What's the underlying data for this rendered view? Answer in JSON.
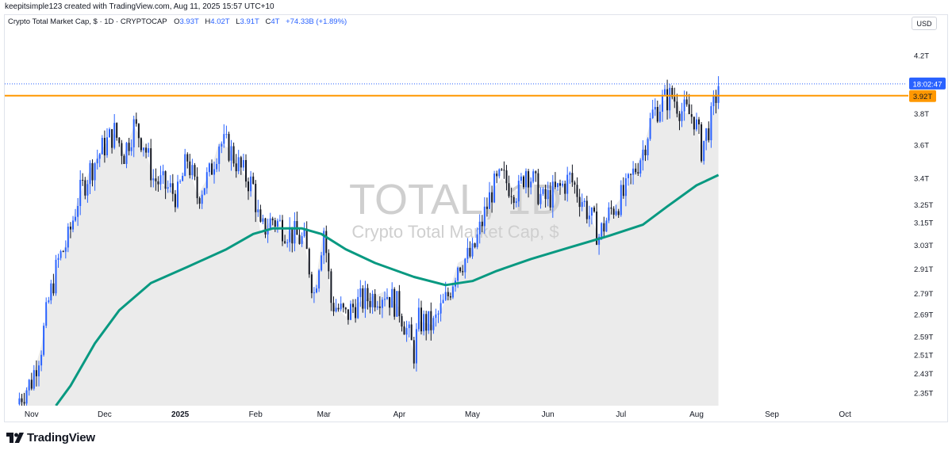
{
  "header": {
    "attribution": "keepitsimple123 created with TradingView.com, Aug 11, 2025 15:57 UTC+10"
  },
  "legend": {
    "title": "Crypto Total Market Cap, $ · 1D · CRYPTOCAP",
    "open_label": "O",
    "open_value": "3.93T",
    "high_label": "H",
    "high_value": "4.02T",
    "low_label": "L",
    "low_value": "3.91T",
    "close_label": "C",
    "close_value": "4T",
    "change_value": "+74.33B (+1.89%)"
  },
  "currency_button": "USD",
  "watermark": {
    "symbol": "TOTAL, 1D",
    "description": "Crypto Total Market Cap, $"
  },
  "footer": {
    "brand": "TradingView"
  },
  "chart_data": {
    "type": "line",
    "title": "Crypto Total Market Cap, $",
    "scale": "log",
    "ylim": [
      2.3,
      4.4
    ],
    "x_axis_labels": [
      {
        "date": "2024-11-01",
        "label": "Nov"
      },
      {
        "date": "2024-12-01",
        "label": "Dec"
      },
      {
        "date": "2025-01-01",
        "label": "2025"
      },
      {
        "date": "2025-02-01",
        "label": "Feb"
      },
      {
        "date": "2025-03-01",
        "label": "Mar"
      },
      {
        "date": "2025-04-01",
        "label": "Apr"
      },
      {
        "date": "2025-05-01",
        "label": "May"
      },
      {
        "date": "2025-06-01",
        "label": "Jun"
      },
      {
        "date": "2025-07-01",
        "label": "Jul"
      },
      {
        "date": "2025-08-01",
        "label": "Aug"
      },
      {
        "date": "2025-09-01",
        "label": "Sep"
      },
      {
        "date": "2025-10-01",
        "label": "Oct"
      }
    ],
    "y_tick_labels": [
      {
        "value": 4.2,
        "label": "4.2T"
      },
      {
        "value": 3.8,
        "label": "3.8T"
      },
      {
        "value": 3.6,
        "label": "3.6T"
      },
      {
        "value": 3.4,
        "label": "3.4T"
      },
      {
        "value": 3.25,
        "label": "3.25T"
      },
      {
        "value": 3.15,
        "label": "3.15T"
      },
      {
        "value": 3.03,
        "label": "3.03T"
      },
      {
        "value": 2.91,
        "label": "2.91T"
      },
      {
        "value": 2.79,
        "label": "2.79T"
      },
      {
        "value": 2.69,
        "label": "2.69T"
      },
      {
        "value": 2.59,
        "label": "2.59T"
      },
      {
        "value": 2.51,
        "label": "2.51T"
      },
      {
        "value": 2.43,
        "label": "2.43T"
      },
      {
        "value": 2.35,
        "label": "2.35T"
      }
    ],
    "price_series": {
      "dates": [
        "2024-10-27",
        "2024-11-01",
        "2024-11-05",
        "2024-11-08",
        "2024-11-12",
        "2024-11-16",
        "2024-11-20",
        "2024-11-25",
        "2024-12-01",
        "2024-12-05",
        "2024-12-09",
        "2024-12-13",
        "2024-12-17",
        "2024-12-21",
        "2024-12-26",
        "2024-12-31",
        "2025-01-04",
        "2025-01-08",
        "2025-01-13",
        "2025-01-17",
        "2025-01-21",
        "2025-01-26",
        "2025-01-31",
        "2025-02-03",
        "2025-02-08",
        "2025-02-15",
        "2025-02-21",
        "2025-02-25",
        "2025-03-01",
        "2025-03-04",
        "2025-03-10",
        "2025-03-14",
        "2025-03-20",
        "2025-03-26",
        "2025-04-01",
        "2025-04-07",
        "2025-04-09",
        "2025-04-15",
        "2025-04-21",
        "2025-04-25",
        "2025-05-01",
        "2025-05-09",
        "2025-05-13",
        "2025-05-20",
        "2025-05-23",
        "2025-05-30",
        "2025-06-05",
        "2025-06-10",
        "2025-06-15",
        "2025-06-22",
        "2025-06-27",
        "2025-07-03",
        "2025-07-10",
        "2025-07-14",
        "2025-07-18",
        "2025-07-22",
        "2025-07-26",
        "2025-07-31",
        "2025-08-03",
        "2025-08-07",
        "2025-08-10"
      ],
      "values": [
        2.33,
        2.4,
        2.55,
        2.75,
        2.95,
        3.06,
        3.28,
        3.45,
        3.6,
        3.68,
        3.55,
        3.72,
        3.62,
        3.4,
        3.35,
        3.3,
        3.52,
        3.3,
        3.42,
        3.62,
        3.58,
        3.45,
        3.35,
        3.1,
        3.17,
        3.1,
        3.05,
        2.79,
        3.12,
        2.75,
        2.68,
        2.74,
        2.77,
        2.8,
        2.72,
        2.52,
        2.66,
        2.64,
        2.78,
        2.94,
        2.98,
        3.33,
        3.4,
        3.32,
        3.46,
        3.27,
        3.33,
        3.4,
        3.28,
        3.08,
        3.22,
        3.32,
        3.57,
        3.8,
        3.88,
        3.92,
        3.82,
        3.78,
        3.58,
        3.76,
        4.0
      ]
    },
    "moving_average": {
      "dates": [
        "2024-11-11",
        "2024-11-17",
        "2024-11-27",
        "2024-12-07",
        "2024-12-20",
        "2025-01-04",
        "2025-01-20",
        "2025-01-31",
        "2025-02-08",
        "2025-02-20",
        "2025-02-28",
        "2025-03-10",
        "2025-03-22",
        "2025-04-07",
        "2025-04-20",
        "2025-05-01",
        "2025-05-11",
        "2025-05-25",
        "2025-06-10",
        "2025-06-26",
        "2025-07-10",
        "2025-07-20",
        "2025-08-01",
        "2025-08-10"
      ],
      "values": [
        2.3,
        2.38,
        2.56,
        2.71,
        2.84,
        2.92,
        3.01,
        3.09,
        3.12,
        3.12,
        3.09,
        3.01,
        2.94,
        2.87,
        2.83,
        2.85,
        2.9,
        2.96,
        3.02,
        3.08,
        3.14,
        3.24,
        3.36,
        3.42
      ]
    },
    "horizontal_line": {
      "value": 3.92,
      "label": "3.92T",
      "color": "#ff9800"
    },
    "current_price": {
      "value": 4.0,
      "countdown": "18:02:47",
      "color": "#2962ff"
    },
    "colors": {
      "up": "#2962ff",
      "down": "#131722",
      "ma": "#089981",
      "area": "#ebebeb"
    }
  }
}
